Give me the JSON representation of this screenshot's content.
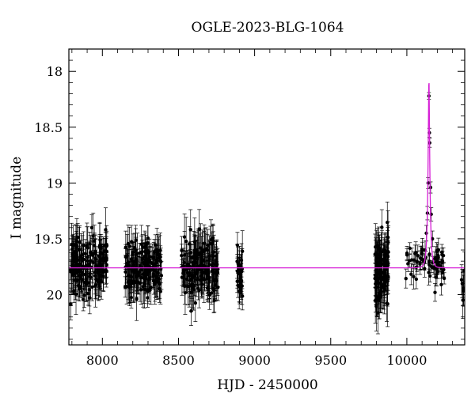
{
  "chart_data": {
    "type": "scatter",
    "title": "OGLE-2023-BLG-1064",
    "xlabel": "HJD - 2450000",
    "ylabel": "I magnitude",
    "xlim": [
      7780,
      10380
    ],
    "ylim": [
      20.45,
      17.8
    ],
    "y_inverted": true,
    "xticks": [
      8000,
      8500,
      9000,
      9500,
      10000
    ],
    "yticks": [
      18,
      18.5,
      19,
      19.5,
      20
    ],
    "xtick_labels": [
      "8000",
      "8500",
      "9000",
      "9500",
      "10000"
    ],
    "ytick_labels": [
      "18",
      "18.5",
      "19",
      "19.5",
      "20"
    ],
    "grid": false,
    "baseline_magnitude": 19.76,
    "seasons": [
      {
        "start": 7790,
        "end": 8030,
        "mean": 19.74,
        "scatter": 0.13,
        "err": 0.15,
        "count": 170
      },
      {
        "start": 8150,
        "end": 8390,
        "mean": 19.75,
        "scatter": 0.12,
        "err": 0.14,
        "count": 160
      },
      {
        "start": 8520,
        "end": 8760,
        "mean": 19.76,
        "scatter": 0.13,
        "err": 0.16,
        "count": 160
      },
      {
        "start": 8885,
        "end": 8920,
        "mean": 19.77,
        "scatter": 0.12,
        "err": 0.15,
        "count": 30
      },
      {
        "start": 9790,
        "end": 9880,
        "mean": 19.78,
        "scatter": 0.16,
        "err": 0.17,
        "count": 110
      },
      {
        "start": 9990,
        "end": 10250,
        "mean": 19.7,
        "scatter": 0.07,
        "err": 0.08,
        "count": 60
      },
      {
        "start": 10350,
        "end": 10380,
        "mean": 19.9,
        "scatter": 0.08,
        "err": 0.12,
        "count": 6
      }
    ],
    "peak_points": [
      {
        "x": 10145,
        "y": 18.22,
        "err": 0.03
      },
      {
        "x": 10148,
        "y": 18.55,
        "err": 0.04
      },
      {
        "x": 10150,
        "y": 18.64,
        "err": 0.04
      },
      {
        "x": 10140,
        "y": 19.0,
        "err": 0.05
      },
      {
        "x": 10156,
        "y": 19.04,
        "err": 0.05
      },
      {
        "x": 10135,
        "y": 19.27,
        "err": 0.06
      },
      {
        "x": 10160,
        "y": 19.28,
        "err": 0.06
      },
      {
        "x": 10128,
        "y": 19.45,
        "err": 0.07
      },
      {
        "x": 10168,
        "y": 19.5,
        "err": 0.07
      },
      {
        "x": 10120,
        "y": 19.6,
        "err": 0.08
      },
      {
        "x": 10185,
        "y": 19.98,
        "err": 0.08
      },
      {
        "x": 10195,
        "y": 19.68,
        "err": 0.08
      },
      {
        "x": 10230,
        "y": 19.62,
        "err": 0.07
      },
      {
        "x": 10240,
        "y": 19.65,
        "err": 0.07
      }
    ],
    "model": {
      "name": "microlensing model",
      "color": "#d61fd6",
      "t0": 10145,
      "tE": 14,
      "u0": 0.21,
      "baseline": 19.76
    },
    "colors": {
      "points": "#000000",
      "model": "#d61fd6",
      "axes": "#000000"
    }
  }
}
